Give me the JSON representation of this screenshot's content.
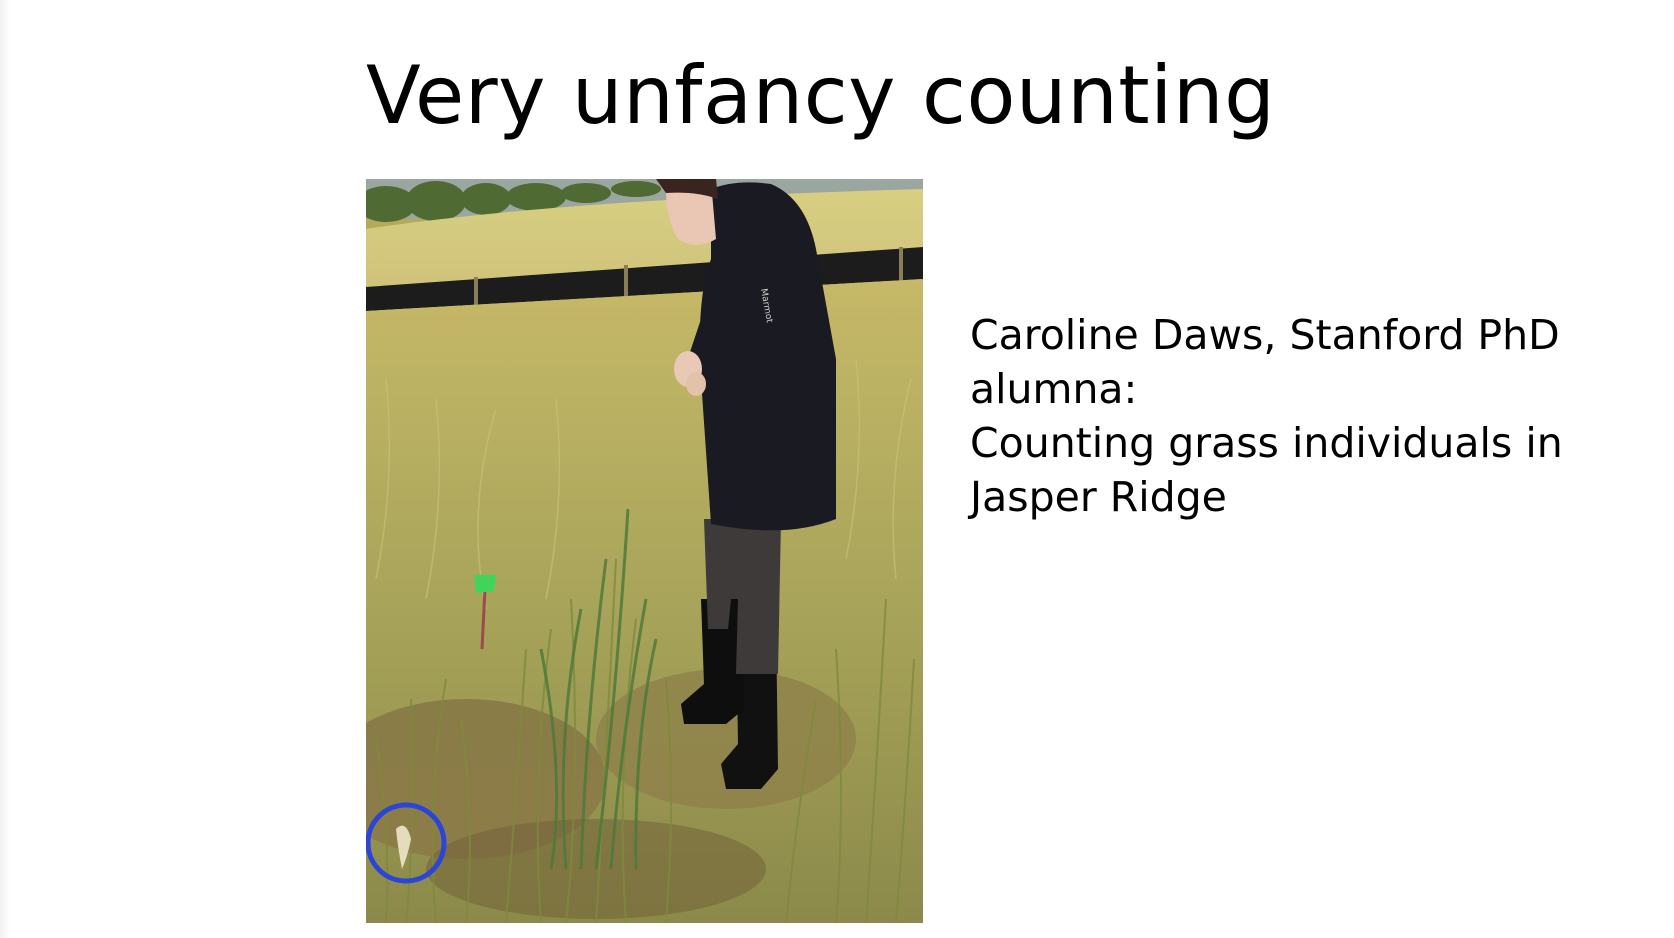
{
  "slide": {
    "title": "Very unfancy counting",
    "caption_lines": [
      "Caroline Daws, Stanford PhD",
      "alumna:",
      "Counting grass individuals in",
      "Jasper Ridge"
    ],
    "photo": {
      "subject": "person-counting-grass-in-field",
      "jacket_logo": "Marmot"
    },
    "annotation_color": "#2a45d8"
  }
}
